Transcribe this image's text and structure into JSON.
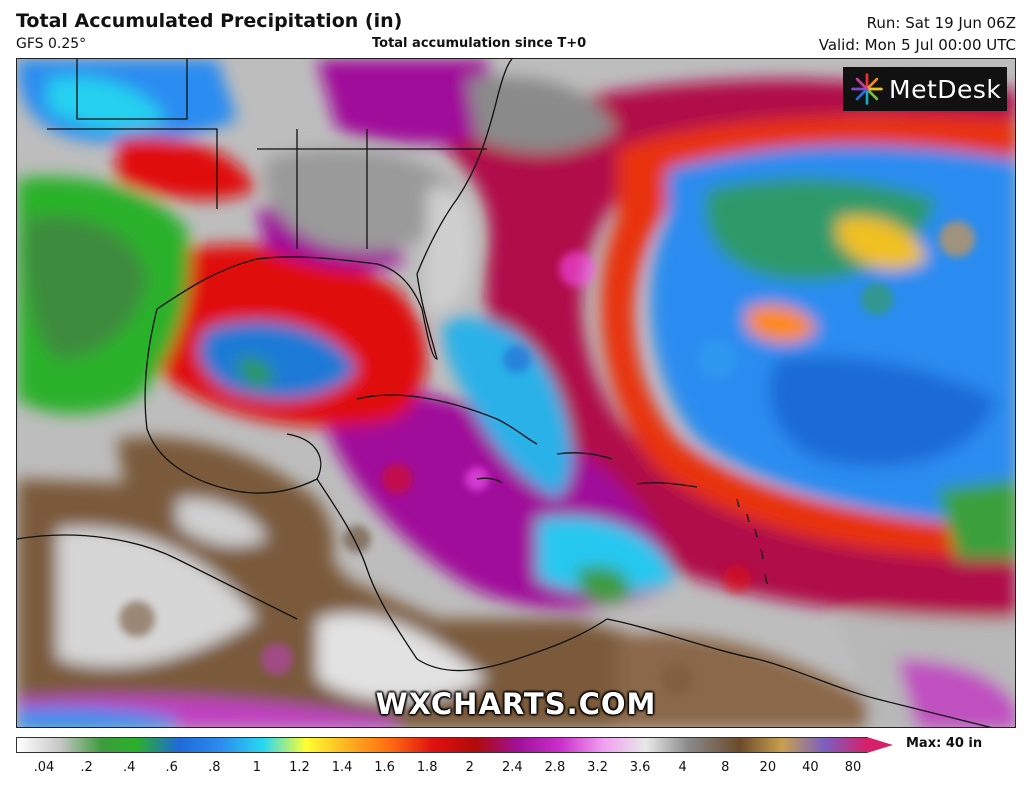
{
  "header": {
    "title": "Total Accumulated Precipitation (in)",
    "model": "GFS 0.25°",
    "subtitle": "Total accumulation since T+0",
    "run": "Run: Sat 19 Jun 06Z",
    "valid": "Valid: Mon 5 Jul 00:00 UTC"
  },
  "logo": {
    "text": "MetDesk",
    "icon": "metdesk-burst-icon"
  },
  "watermark": "WXCHARTS.COM",
  "colorbar": {
    "max_label": "Max: 40 in",
    "ticks": [
      ".04",
      ".2",
      ".4",
      ".6",
      ".8",
      "1",
      "1.2",
      "1.4",
      "1.6",
      "1.8",
      "2",
      "2.4",
      "2.8",
      "3.2",
      "3.6",
      "4",
      "8",
      "20",
      "40",
      "80"
    ],
    "colors": [
      "#ffffff",
      "#c8c8c8",
      "#3d9b3d",
      "#2bb12b",
      "#1f6ad6",
      "#2b8cf0",
      "#28d8f0",
      "#ffff30",
      "#ffb020",
      "#ff6a10",
      "#e01010",
      "#b00a0a",
      "#a0109a",
      "#cc30cc",
      "#f0a0f0",
      "#e8e8e8",
      "#8a8a8a",
      "#6b4a2a",
      "#c8a050",
      "#7b5fc0",
      "#d6206a"
    ]
  }
}
